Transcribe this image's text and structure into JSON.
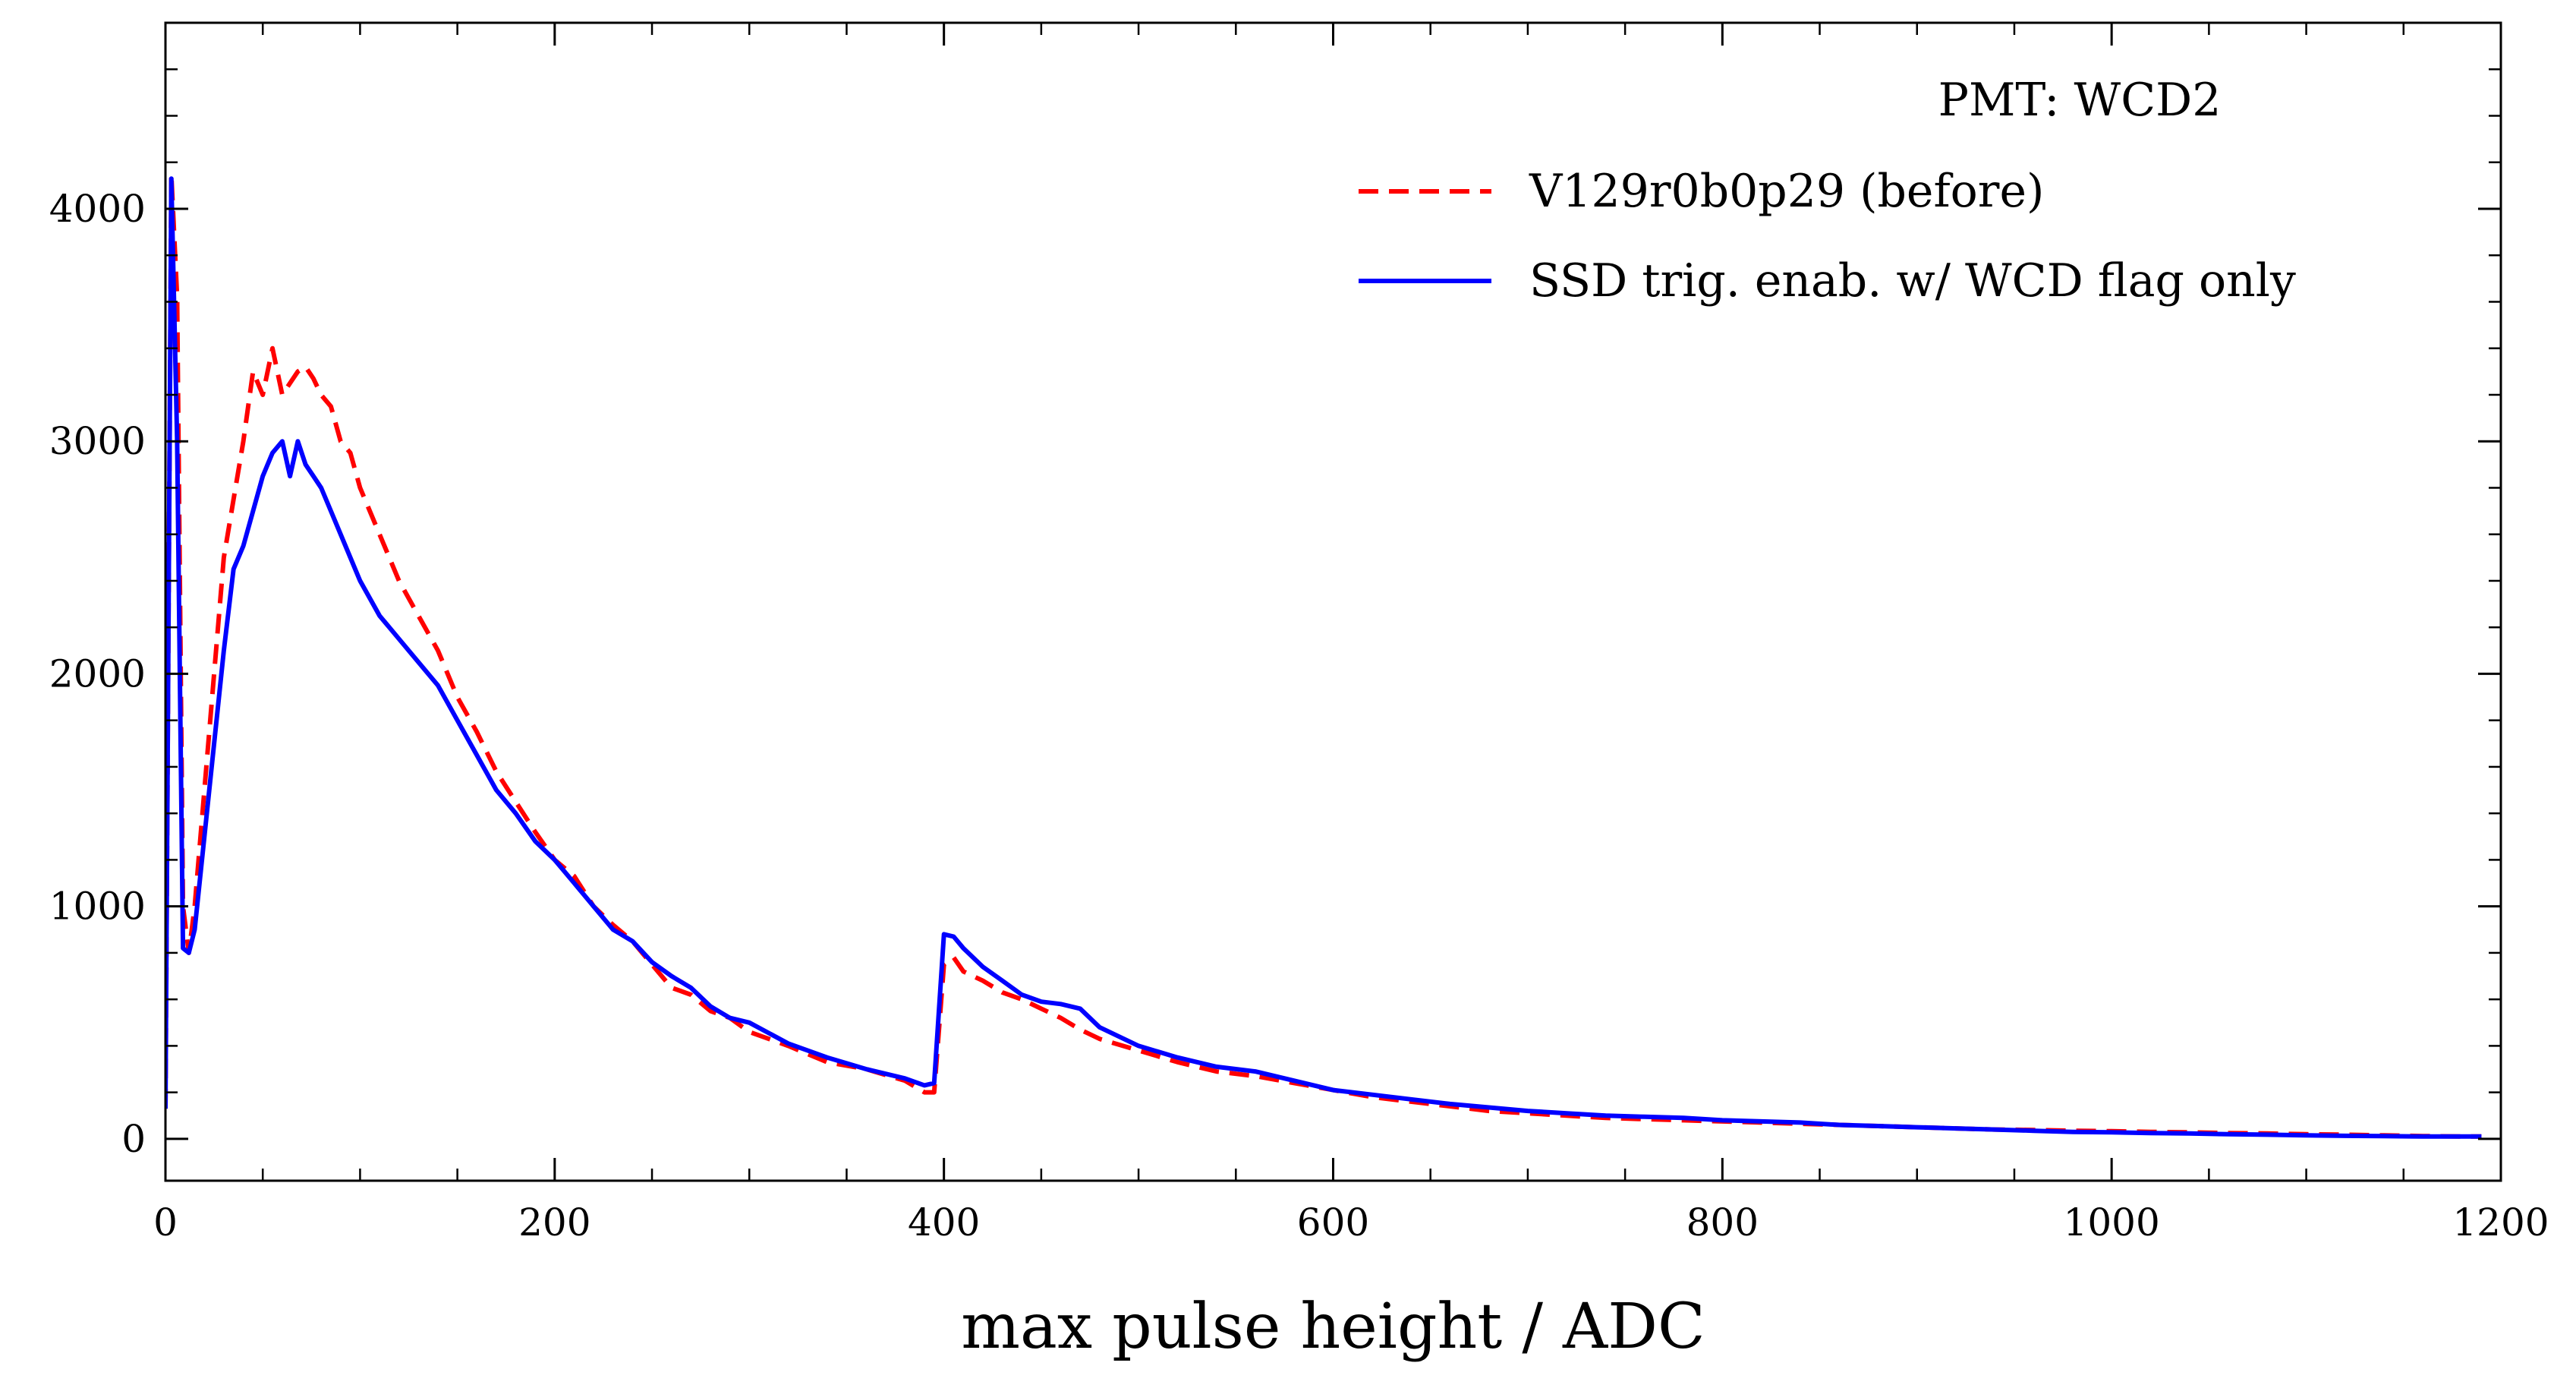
{
  "chart_data": {
    "type": "line",
    "title": "",
    "xlabel": "max pulse height / ADC",
    "ylabel": "",
    "xlim": [
      0,
      1200
    ],
    "ylim": [
      -180,
      4800
    ],
    "x_ticks": [
      0,
      200,
      400,
      600,
      800,
      1000,
      1200
    ],
    "x_tick_labels": [
      "0",
      "200",
      "400",
      "600",
      "800",
      "1000",
      "1200"
    ],
    "y_ticks": [
      0,
      1000,
      2000,
      3000,
      4000
    ],
    "y_tick_labels": [
      "0",
      "1000",
      "2000",
      "3000",
      "4000"
    ],
    "grid": false,
    "legend": {
      "title": "PMT: WCD2",
      "placement": "top-right"
    },
    "series": [
      {
        "name": "V129r0b0p29 (before)",
        "color": "#ff0000",
        "dash": "dashed",
        "x": [
          0,
          3,
          6,
          9,
          12,
          15,
          20,
          25,
          30,
          35,
          40,
          45,
          50,
          55,
          60,
          64,
          68,
          72,
          76,
          80,
          85,
          90,
          95,
          100,
          110,
          120,
          130,
          140,
          150,
          160,
          170,
          180,
          190,
          200,
          210,
          220,
          230,
          240,
          250,
          260,
          270,
          280,
          290,
          300,
          320,
          340,
          360,
          380,
          390,
          395,
          400,
          405,
          410,
          420,
          430,
          440,
          450,
          460,
          470,
          480,
          500,
          520,
          540,
          560,
          580,
          600,
          620,
          640,
          660,
          680,
          700,
          720,
          740,
          760,
          780,
          800,
          820,
          840,
          860,
          880,
          900,
          920,
          940,
          960,
          980,
          1000,
          1020,
          1040,
          1060,
          1080,
          1100,
          1120,
          1140,
          1160,
          1180,
          1190
        ],
        "values": [
          130,
          4150,
          3620,
          1000,
          800,
          1000,
          1500,
          2000,
          2500,
          2750,
          3000,
          3300,
          3200,
          3400,
          3200,
          3250,
          3300,
          3320,
          3270,
          3200,
          3150,
          3000,
          2950,
          2800,
          2600,
          2400,
          2250,
          2100,
          1900,
          1750,
          1580,
          1450,
          1320,
          1200,
          1130,
          1000,
          920,
          850,
          750,
          650,
          620,
          550,
          520,
          460,
          400,
          330,
          300,
          250,
          200,
          200,
          750,
          780,
          720,
          680,
          630,
          600,
          560,
          520,
          470,
          430,
          380,
          330,
          290,
          270,
          240,
          210,
          180,
          160,
          140,
          120,
          110,
          100,
          90,
          85,
          80,
          75,
          70,
          65,
          60,
          55,
          50,
          45,
          40,
          38,
          35,
          33,
          30,
          28,
          25,
          23,
          20,
          18,
          15,
          12,
          10,
          10
        ]
      },
      {
        "name": "SSD trig. enab. w/ WCD flag only",
        "color": "#0000ff",
        "dash": "solid",
        "x": [
          0,
          3,
          6,
          9,
          12,
          15,
          20,
          25,
          30,
          35,
          40,
          45,
          50,
          55,
          60,
          64,
          68,
          72,
          76,
          80,
          85,
          90,
          95,
          100,
          110,
          120,
          130,
          140,
          150,
          160,
          170,
          180,
          190,
          200,
          210,
          220,
          230,
          240,
          250,
          260,
          270,
          280,
          290,
          300,
          320,
          340,
          360,
          380,
          390,
          395,
          400,
          405,
          410,
          420,
          430,
          440,
          450,
          460,
          470,
          480,
          500,
          520,
          540,
          560,
          580,
          600,
          620,
          640,
          660,
          680,
          700,
          720,
          740,
          760,
          780,
          800,
          820,
          840,
          860,
          880,
          900,
          920,
          940,
          960,
          980,
          1000,
          1020,
          1040,
          1060,
          1080,
          1100,
          1120,
          1140,
          1160,
          1180,
          1190
        ],
        "values": [
          130,
          4130,
          3000,
          820,
          800,
          900,
          1300,
          1700,
          2100,
          2450,
          2550,
          2700,
          2850,
          2950,
          3000,
          2850,
          3000,
          2900,
          2850,
          2800,
          2700,
          2600,
          2500,
          2400,
          2250,
          2150,
          2050,
          1950,
          1800,
          1650,
          1500,
          1400,
          1280,
          1200,
          1100,
          1000,
          900,
          850,
          760,
          700,
          650,
          570,
          520,
          500,
          410,
          350,
          300,
          260,
          230,
          240,
          880,
          870,
          820,
          740,
          680,
          620,
          590,
          580,
          560,
          480,
          400,
          350,
          310,
          290,
          250,
          210,
          190,
          170,
          150,
          135,
          120,
          110,
          100,
          95,
          90,
          80,
          75,
          70,
          60,
          55,
          50,
          45,
          40,
          35,
          30,
          28,
          25,
          23,
          20,
          18,
          15,
          13,
          12,
          10,
          10,
          10
        ]
      }
    ]
  }
}
